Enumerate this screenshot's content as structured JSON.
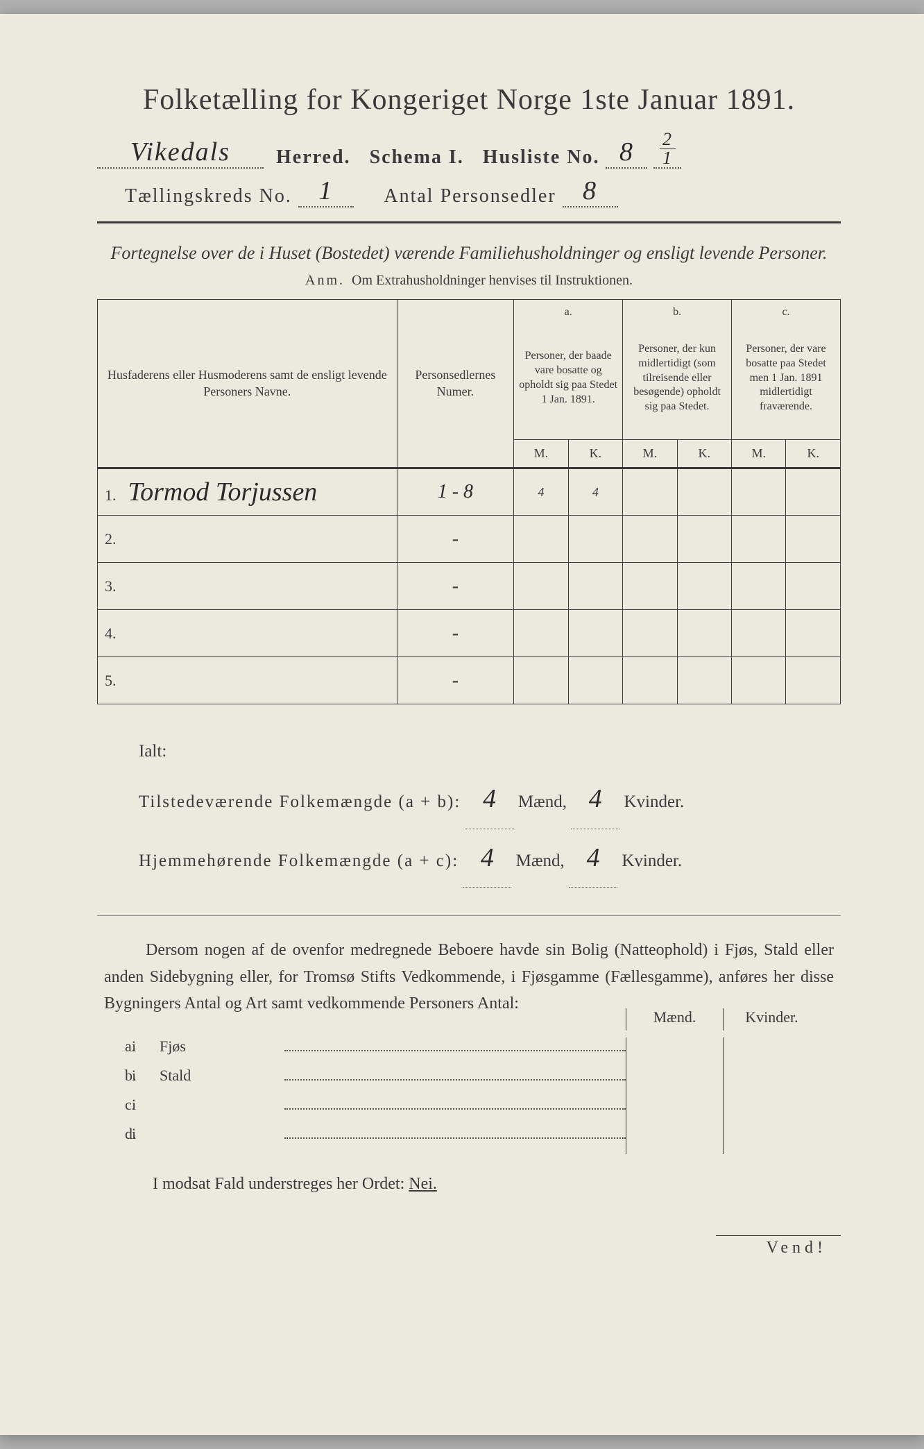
{
  "title": "Folketælling for Kongeriget Norge 1ste Januar 1891.",
  "header": {
    "herred_value": "Vikedals",
    "herred_label": "Herred.",
    "schema_label": "Schema I.",
    "husliste_label": "Husliste No.",
    "husliste_value": "8",
    "husliste_frac_top": "2",
    "husliste_frac_bot": "1",
    "kreds_label": "Tællingskreds No.",
    "kreds_value": "1",
    "antal_label": "Antal Personsedler",
    "antal_value": "8"
  },
  "subtitle": "Fortegnelse over de i Huset (Bostedet) værende Familiehusholdninger og ensligt levende Personer.",
  "anm_prefix": "Anm.",
  "anm_text": "Om Extrahusholdninger henvises til Instruktionen.",
  "table": {
    "col1_header": "Husfaderens eller Husmoderens samt de ensligt levende Personers Navne.",
    "col2_header": "Personsedlernes Numer.",
    "col_a_letter": "a.",
    "col_a_desc": "Personer, der baade vare bosatte og opholdt sig paa Stedet 1 Jan. 1891.",
    "col_b_letter": "b.",
    "col_b_desc": "Personer, der kun midlertidigt (som tilreisende eller besøgende) opholdt sig paa Stedet.",
    "col_c_letter": "c.",
    "col_c_desc": "Personer, der vare bosatte paa Stedet men 1 Jan. 1891 midlertidigt fraværende.",
    "m": "M.",
    "k": "K.",
    "rows": [
      {
        "n": "1.",
        "name": "Tormod Torjussen",
        "numer": "1 - 8",
        "am": "4",
        "ak": "4",
        "bm": "",
        "bk": "",
        "cm": "",
        "ck": ""
      },
      {
        "n": "2.",
        "name": "",
        "numer": "-",
        "am": "",
        "ak": "",
        "bm": "",
        "bk": "",
        "cm": "",
        "ck": ""
      },
      {
        "n": "3.",
        "name": "",
        "numer": "-",
        "am": "",
        "ak": "",
        "bm": "",
        "bk": "",
        "cm": "",
        "ck": ""
      },
      {
        "n": "4.",
        "name": "",
        "numer": "-",
        "am": "",
        "ak": "",
        "bm": "",
        "bk": "",
        "cm": "",
        "ck": ""
      },
      {
        "n": "5.",
        "name": "",
        "numer": "-",
        "am": "",
        "ak": "",
        "bm": "",
        "bk": "",
        "cm": "",
        "ck": ""
      }
    ]
  },
  "summary": {
    "ialt": "Ialt:",
    "line1_label": "Tilstedeværende Folkemængde (a + b):",
    "line2_label": "Hjemmehørende Folkemængde (a + c):",
    "maend": "Mænd,",
    "kvinder": "Kvinder.",
    "l1_m": "4",
    "l1_k": "4",
    "l2_m": "4",
    "l2_k": "4"
  },
  "paragraph": "Dersom nogen af de ovenfor medregnede Beboere havde sin Bolig (Natteophold) i Fjøs, Stald eller anden Sidebygning eller, for Tromsø Stifts Vedkommende, i Fjøsgamme (Fællesgamme), anføres her disse Bygningers Antal og Art samt vedkommende Personers Antal:",
  "side": {
    "h_m": "Mænd.",
    "h_k": "Kvinder.",
    "rows": [
      {
        "l": "a.",
        "i": "i",
        "t": "Fjøs"
      },
      {
        "l": "b.",
        "i": "i",
        "t": "Stald"
      },
      {
        "l": "c.",
        "i": "i",
        "t": ""
      },
      {
        "l": "d.",
        "i": "i",
        "t": ""
      }
    ]
  },
  "nei_line": "I modsat Fald understreges her Ordet:",
  "nei": "Nei.",
  "vend": "Vend!",
  "colors": {
    "paper": "#ece9de",
    "ink": "#3a3a3a",
    "background": "#b0b0b0"
  }
}
